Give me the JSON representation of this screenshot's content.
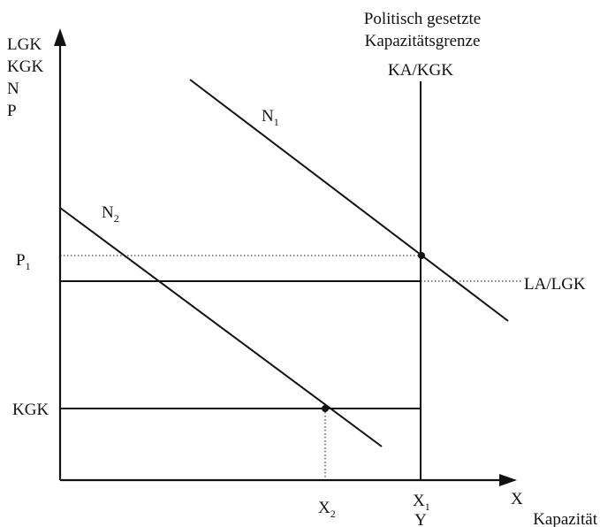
{
  "y_axis_labels": [
    "LGK",
    "KGK",
    "N",
    "P"
  ],
  "top_label": [
    "Politisch gesetzte",
    "Kapazitätsgrenze"
  ],
  "vertical_line_label": "KA/KGK",
  "curves": [
    {
      "name": "N",
      "sub": "1"
    },
    {
      "name": "N",
      "sub": "2"
    }
  ],
  "levels": {
    "p1": {
      "name": "P",
      "sub": "1"
    },
    "la": "LA/LGK",
    "kgk": "KGK"
  },
  "x_axis": {
    "arrow_label": "X",
    "title": "Kapazität",
    "x2": {
      "name": "X",
      "sub": "2"
    },
    "x1": {
      "name": "X",
      "sub": "1"
    },
    "y": "Y"
  }
}
